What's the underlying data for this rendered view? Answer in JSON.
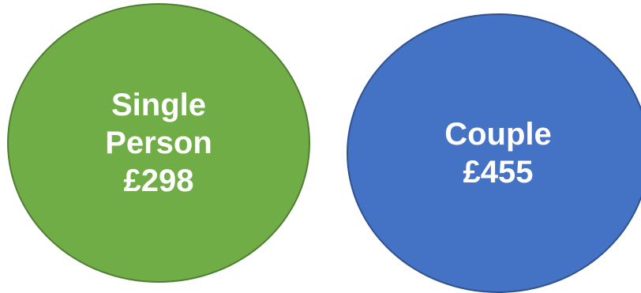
{
  "bubbles": {
    "single": {
      "line1": "Single",
      "line2": "Person",
      "amount": "£298",
      "fill": "#70ad47",
      "border": "#507e32"
    },
    "couple": {
      "line1": "Couple",
      "amount": "£455",
      "fill": "#4472c4",
      "border": "#2f528f"
    }
  }
}
